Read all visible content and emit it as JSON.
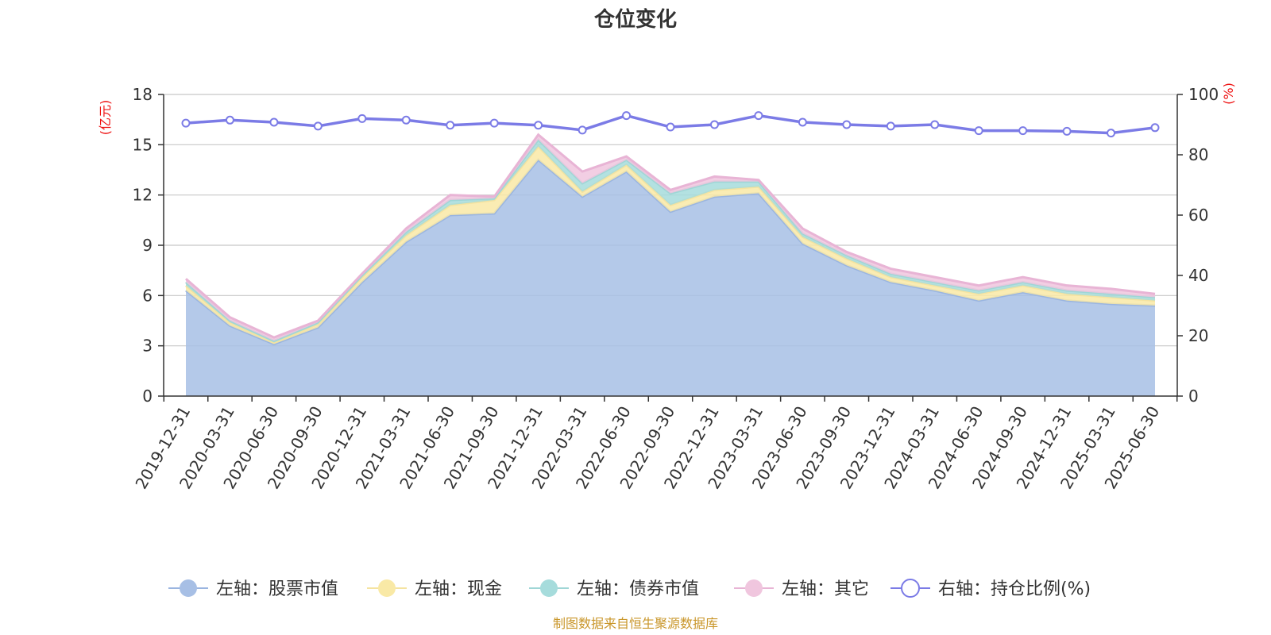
{
  "chart_data": {
    "type": "area",
    "title": "仓位变化",
    "left_unit": "(亿元)",
    "right_unit": "(%)",
    "categories": [
      "2019-12-31",
      "2020-03-31",
      "2020-06-30",
      "2020-09-30",
      "2020-12-31",
      "2021-03-31",
      "2021-06-30",
      "2021-09-30",
      "2021-12-31",
      "2022-03-31",
      "2022-06-30",
      "2022-09-30",
      "2022-12-31",
      "2023-03-31",
      "2023-06-30",
      "2023-09-30",
      "2023-12-31",
      "2024-03-31",
      "2024-06-30",
      "2024-09-30",
      "2024-12-31",
      "2025-03-31",
      "2025-06-30"
    ],
    "left_axis": {
      "min": 0,
      "max": 18,
      "ticks": [
        0,
        3,
        6,
        9,
        12,
        15,
        18
      ]
    },
    "right_axis": {
      "min": 0,
      "max": 100,
      "ticks": [
        0,
        20,
        40,
        60,
        80,
        100
      ]
    },
    "stacked_series": [
      {
        "name": "左轴：股票市值",
        "color": "#a7bfe5",
        "line_color": "#9ab5e0",
        "values": [
          6.3,
          4.2,
          3.1,
          4.1,
          6.8,
          9.2,
          10.8,
          10.9,
          14.1,
          11.9,
          13.4,
          11.0,
          11.9,
          12.1,
          9.1,
          7.8,
          6.8,
          6.3,
          5.7,
          6.2,
          5.7,
          5.5,
          5.4
        ]
      },
      {
        "name": "左轴：现金",
        "color": "#f9e9a6",
        "line_color": "#f5e3a0",
        "values": [
          0.3,
          0.2,
          0.1,
          0.2,
          0.3,
          0.4,
          0.6,
          0.8,
          0.8,
          0.3,
          0.4,
          0.4,
          0.4,
          0.4,
          0.4,
          0.4,
          0.3,
          0.3,
          0.4,
          0.4,
          0.4,
          0.4,
          0.3
        ]
      },
      {
        "name": "左轴：债券市值",
        "color": "#a6dcdc",
        "line_color": "#9fd6d6",
        "values": [
          0.2,
          0.1,
          0.1,
          0.1,
          0.1,
          0.2,
          0.3,
          0.1,
          0.4,
          0.5,
          0.3,
          0.7,
          0.5,
          0.3,
          0.2,
          0.2,
          0.2,
          0.2,
          0.2,
          0.2,
          0.2,
          0.2,
          0.2
        ]
      },
      {
        "name": "左轴：其它",
        "color": "#f0c6de",
        "line_color": "#e8b4d5",
        "values": [
          0.2,
          0.2,
          0.2,
          0.1,
          0.1,
          0.2,
          0.3,
          0.1,
          0.3,
          0.7,
          0.2,
          0.2,
          0.3,
          0.1,
          0.3,
          0.2,
          0.3,
          0.3,
          0.3,
          0.3,
          0.3,
          0.3,
          0.2
        ]
      }
    ],
    "line_series": {
      "name": "右轴：持仓比例(%)",
      "color": "#7b7be6",
      "values": [
        90.5,
        91.5,
        90.8,
        89.5,
        92.0,
        91.5,
        89.8,
        90.5,
        89.8,
        88.2,
        93.0,
        89.2,
        90.0,
        93.0,
        90.8,
        90.0,
        89.5,
        90.0,
        88.0,
        88.0,
        87.8,
        87.2,
        89.0
      ]
    },
    "legend_position": "bottom",
    "grid": true
  },
  "source_text": "制图数据来自恒生聚源数据库"
}
